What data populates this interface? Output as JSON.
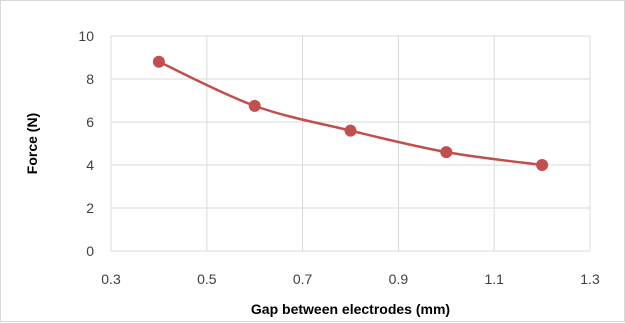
{
  "chart_data": {
    "type": "scatter",
    "title": "",
    "xlabel": "Gap between electrodes (mm)",
    "ylabel": "Force (N)",
    "xlim": [
      0.3,
      1.3
    ],
    "ylim": [
      0,
      10
    ],
    "x_ticks": [
      "0.3",
      "0.5",
      "0.7",
      "0.9",
      "1.1",
      "1.3"
    ],
    "y_ticks": [
      "0",
      "2",
      "4",
      "6",
      "8",
      "10"
    ],
    "grid": true,
    "legend": "none",
    "series": [
      {
        "x": [
          0.4,
          0.6,
          0.8,
          1.0,
          1.2
        ],
        "y": [
          8.8,
          6.75,
          5.6,
          4.6,
          4.0
        ],
        "color": "#c0504d",
        "line": "smooth",
        "marker": "circle"
      }
    ]
  }
}
